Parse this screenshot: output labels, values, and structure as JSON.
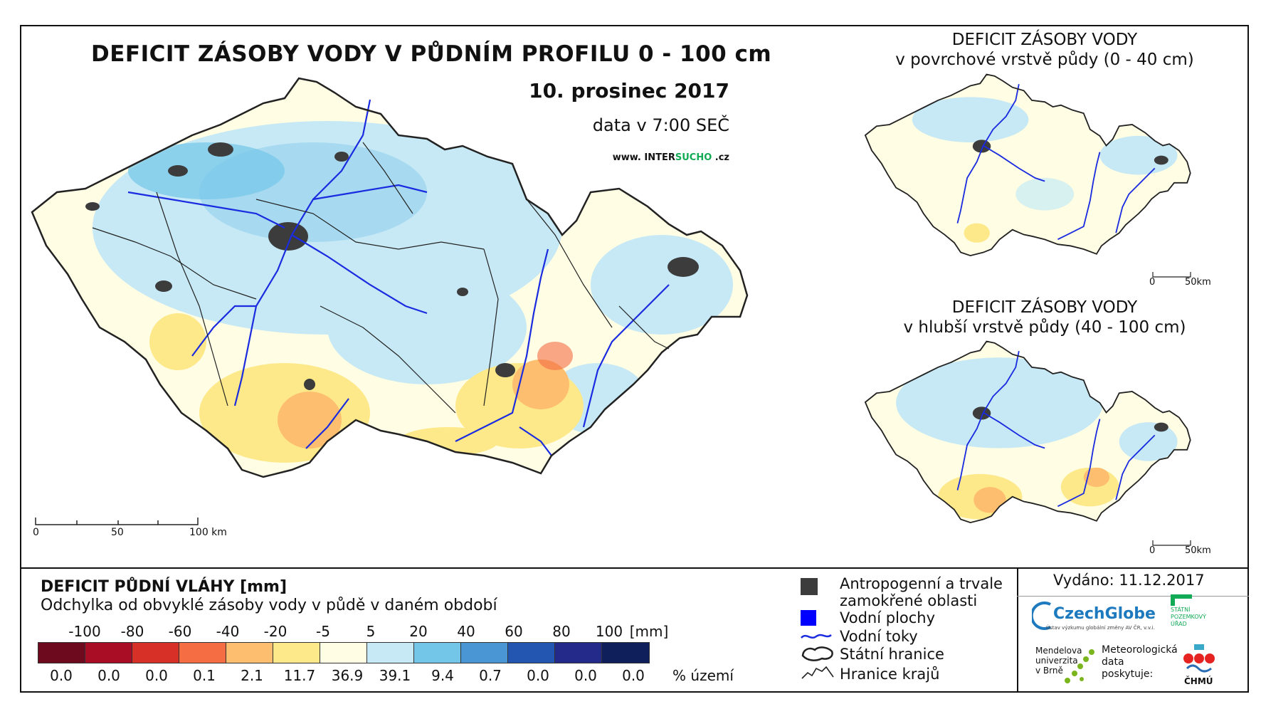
{
  "main_map": {
    "title": "DEFICIT ZÁSOBY VODY V PŮDNÍM PROFILU 0 - 100 cm",
    "date": "10. prosinec 2017",
    "data_time": "data v 7:00 SEČ",
    "website_prefix": "www. INTER",
    "website_highlight": "SUCHO",
    "website_suffix": " .cz",
    "scale": {
      "tick0": "0",
      "tick1": "50",
      "tick2": "100 km"
    }
  },
  "inset_top": {
    "title_line1": "DEFICIT ZÁSOBY VODY",
    "title_line2": "v povrchové vrstvě půdy (0 - 40 cm)",
    "scale": {
      "tick0": "0",
      "tick1": "50km"
    }
  },
  "inset_bottom": {
    "title_line1": "DEFICIT ZÁSOBY VODY",
    "title_line2": "v hlubší vrstvě půdy (40 - 100 cm)",
    "scale": {
      "tick0": "0",
      "tick1": "50km"
    }
  },
  "legend": {
    "title": "DEFICIT PŮDNÍ VLÁHY [mm]",
    "subtitle": "Odchylka od obvyklé zásoby vody v půdě v daném období",
    "breaks": [
      "-100",
      "-80",
      "-60",
      "-40",
      "-20",
      "-5",
      "5",
      "20",
      "40",
      "60",
      "80",
      "100"
    ],
    "unit": "[mm]",
    "colors": [
      "#6e0a1e",
      "#a80d25",
      "#d73027",
      "#f46d43",
      "#fdbf6f",
      "#fee98a",
      "#fffde3",
      "#c6e9f5",
      "#74c6e8",
      "#4a96d4",
      "#2356b0",
      "#232a8a",
      "#0e1f5b"
    ],
    "percentages": [
      "0.0",
      "0.0",
      "0.0",
      "0.1",
      "2.1",
      "11.7",
      "36.9",
      "39.1",
      "9.4",
      "0.7",
      "0.0",
      "0.0",
      "0.0"
    ],
    "percent_label": "% území"
  },
  "symbols": {
    "urban_line1": "Antropogenní a trvale",
    "urban_line2": "zamokřené oblasti",
    "water": "Vodní plochy",
    "rivers": "Vodní toky",
    "border": "Státní hranice",
    "regions": "Hranice krajů",
    "colors": {
      "urban": "#3c3c3c",
      "water": "#0000ff",
      "river": "#1a2be0"
    }
  },
  "footer": {
    "issued": "Vydáno: 11.12.2017",
    "logo_czechglobe": "CzechGlobe",
    "logo_czechglobe_sub": "Ústav výzkumu globální změny AV ČR, v.v.i.",
    "logo_spu_line1": "STÁTNÍ",
    "logo_spu_line2": "POZEMKOVÝ",
    "logo_spu_line3": "ÚŘAD",
    "logo_mendel_line1": "Mendelova",
    "logo_mendel_line2": "univerzita",
    "logo_mendel_line3": "v Brně",
    "met_line1": "Meteorologická",
    "met_line2": "data",
    "met_line3": "poskytuje:",
    "logo_chmu": "ČHMÚ"
  }
}
